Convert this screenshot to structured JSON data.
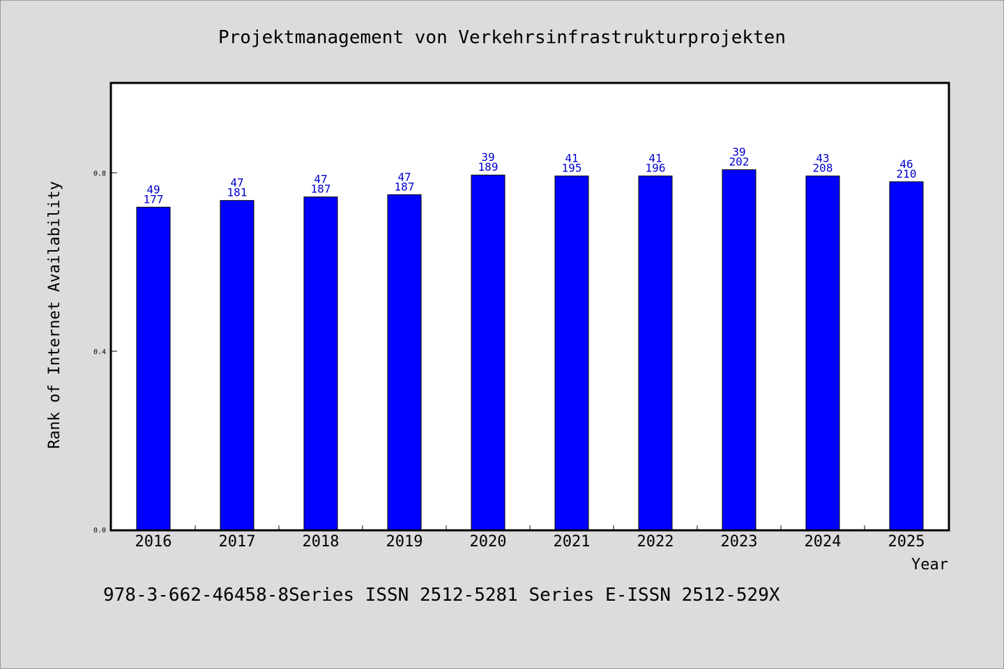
{
  "chart_data": {
    "type": "bar",
    "title": "Projektmanagement von Verkehrsinfrastrukturprojekten",
    "xlabel": "Year",
    "ylabel": "Rank of Internet Availability",
    "categories": [
      "2016",
      "2017",
      "2018",
      "2019",
      "2020",
      "2021",
      "2022",
      "2023",
      "2024",
      "2025"
    ],
    "values": [
      0.723,
      0.738,
      0.746,
      0.751,
      0.795,
      0.793,
      0.793,
      0.807,
      0.793,
      0.78
    ],
    "label_top": [
      "49",
      "47",
      "47",
      "47",
      "39",
      "41",
      "41",
      "39",
      "43",
      "46"
    ],
    "label_bottom": [
      "177",
      "181",
      "187",
      "187",
      "189",
      "195",
      "196",
      "202",
      "208",
      "210"
    ],
    "ylim": [
      0,
      1.0
    ],
    "yticks": [
      "0.0",
      "0.4",
      "0.8"
    ],
    "ytick_values": [
      0.0,
      0.4,
      0.8
    ],
    "bar_color": "#0000ff",
    "label_color": "#0000cc",
    "grid": false
  },
  "footer": {
    "text": "978-3-662-46458-8Series ISSN 2512-5281 Series E-ISSN 2512-529X"
  }
}
